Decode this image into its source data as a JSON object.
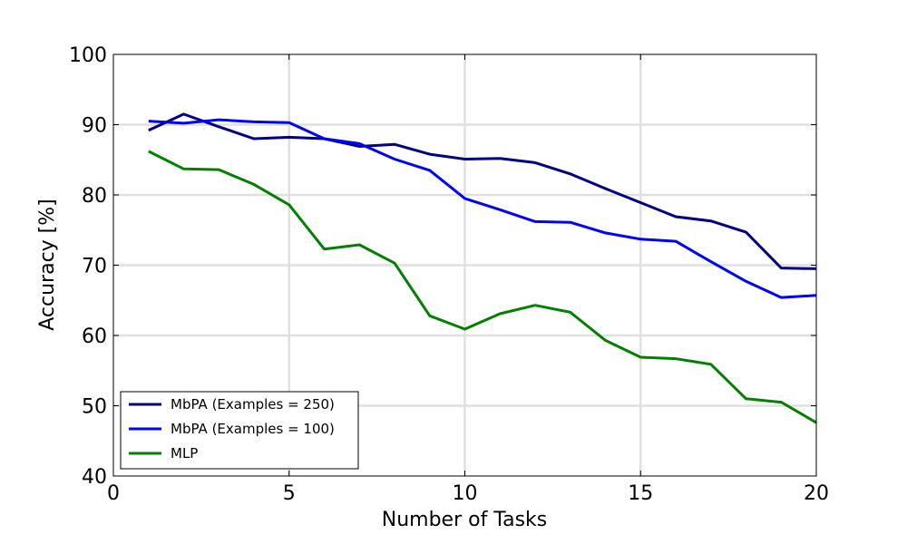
{
  "chart_data": {
    "type": "line",
    "title": "",
    "xlabel": "Number of Tasks",
    "ylabel": "Accuracy [%]",
    "xlim": [
      0,
      20
    ],
    "ylim": [
      40,
      100
    ],
    "xticks": [
      0,
      5,
      10,
      15,
      20
    ],
    "yticks": [
      40,
      50,
      60,
      70,
      80,
      90,
      100
    ],
    "xtick_labels": [
      "0",
      "5",
      "10",
      "15",
      "20"
    ],
    "ytick_labels": [
      "40",
      "50",
      "60",
      "70",
      "80",
      "90",
      "100"
    ],
    "grid": true,
    "legend_position": "lower-left",
    "x": [
      1,
      2,
      3,
      4,
      5,
      6,
      7,
      8,
      9,
      10,
      11,
      12,
      13,
      14,
      15,
      16,
      17,
      18,
      19,
      20
    ],
    "series": [
      {
        "name": "MbPA (Examples = 250)",
        "color": "#000080",
        "values": [
          89.2,
          91.5,
          89.7,
          88.0,
          88.2,
          88.0,
          86.9,
          87.2,
          85.8,
          85.1,
          85.2,
          84.6,
          83.0,
          80.9,
          78.9,
          76.9,
          76.3,
          74.7,
          69.6,
          69.5
        ]
      },
      {
        "name": "MbPA (Examples = 100)",
        "color": "#0000ff",
        "values": [
          90.5,
          90.2,
          90.7,
          90.4,
          90.3,
          88.0,
          87.3,
          85.1,
          83.5,
          79.5,
          77.9,
          76.2,
          76.1,
          74.6,
          73.7,
          73.4,
          70.5,
          67.7,
          65.4,
          65.7
        ]
      },
      {
        "name": "MLP",
        "color": "#008000",
        "values": [
          86.2,
          83.7,
          83.6,
          81.5,
          78.6,
          72.3,
          72.9,
          70.3,
          62.8,
          60.9,
          63.1,
          64.3,
          63.3,
          59.3,
          56.9,
          56.7,
          55.9,
          51.0,
          50.5,
          47.6
        ]
      }
    ]
  }
}
